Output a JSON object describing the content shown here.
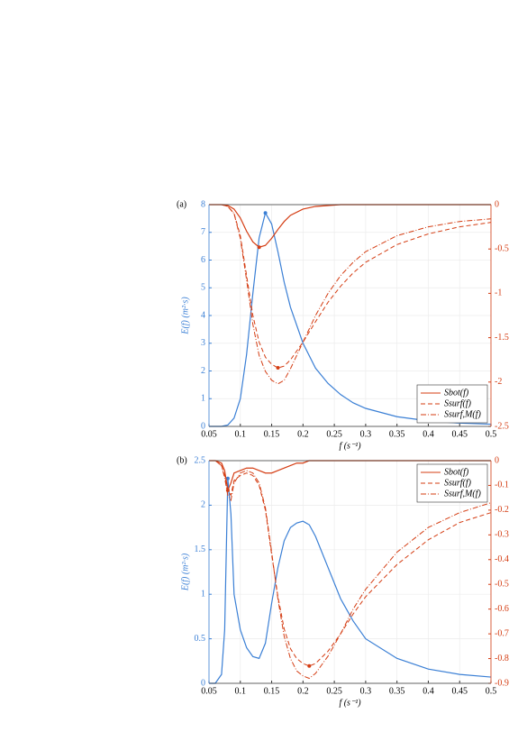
{
  "chart_data": [
    {
      "type": "line",
      "label": "(a)",
      "xlabel": "f (s⁻¹)",
      "ylabel": "E(f) (m²·s)",
      "x": [
        0.05,
        0.07,
        0.08,
        0.09,
        0.1,
        0.11,
        0.12,
        0.13,
        0.14,
        0.15,
        0.16,
        0.17,
        0.18,
        0.2,
        0.22,
        0.24,
        0.26,
        0.28,
        0.3,
        0.35,
        0.4,
        0.45,
        0.5
      ],
      "series": [
        {
          "name": "E(f)",
          "color": "#3a7fd5",
          "style": "solid",
          "axis": "y",
          "values": [
            0,
            0,
            0.05,
            0.3,
            1.0,
            2.6,
            4.8,
            6.8,
            7.7,
            7.3,
            6.3,
            5.2,
            4.3,
            3.0,
            2.1,
            1.55,
            1.15,
            0.85,
            0.65,
            0.35,
            0.2,
            0.12,
            0.08
          ]
        },
        {
          "name": "Sbot(f)",
          "color": "#d43c12",
          "style": "solid",
          "axis": "y2",
          "values": [
            0,
            0,
            -0.01,
            -0.05,
            -0.15,
            -0.3,
            -0.42,
            -0.48,
            -0.46,
            -0.38,
            -0.28,
            -0.19,
            -0.12,
            -0.05,
            -0.02,
            -0.01,
            0,
            0,
            0,
            0,
            0,
            0,
            0
          ]
        },
        {
          "name": "Ssurf(f)",
          "color": "#d43c12",
          "style": "dashed",
          "axis": "y2",
          "values": [
            0,
            0,
            -0.02,
            -0.1,
            -0.35,
            -0.8,
            -1.25,
            -1.55,
            -1.72,
            -1.8,
            -1.84,
            -1.82,
            -1.75,
            -1.55,
            -1.32,
            -1.1,
            -0.92,
            -0.77,
            -0.65,
            -0.45,
            -0.33,
            -0.25,
            -0.2
          ]
        },
        {
          "name": "Ssurf,M(f)",
          "color": "#d43c12",
          "style": "dashdot",
          "axis": "y2",
          "values": [
            0,
            0,
            -0.02,
            -0.1,
            -0.38,
            -0.85,
            -1.35,
            -1.7,
            -1.88,
            -1.98,
            -2.02,
            -1.98,
            -1.85,
            -1.55,
            -1.25,
            -1.0,
            -0.8,
            -0.65,
            -0.53,
            -0.35,
            -0.25,
            -0.19,
            -0.16
          ]
        }
      ],
      "xlim": [
        0.05,
        0.5
      ],
      "xticks": [
        0.05,
        0.1,
        0.15,
        0.2,
        0.25,
        0.3,
        0.35,
        0.4,
        0.45,
        0.5
      ],
      "ylim": [
        0,
        8
      ],
      "yticks": [
        0,
        1,
        2,
        3,
        4,
        5,
        6,
        7,
        8
      ],
      "y2lim": [
        -2.5,
        0
      ],
      "y2ticks": [
        -2.5,
        -2,
        -1.5,
        -1,
        -0.5,
        0
      ],
      "grid": true,
      "legend": "lower right"
    },
    {
      "type": "line",
      "label": "(b)",
      "xlabel": "f (s⁻¹)",
      "ylabel": "E(f) (m²·s)",
      "x": [
        0.05,
        0.06,
        0.07,
        0.075,
        0.08,
        0.085,
        0.09,
        0.1,
        0.11,
        0.12,
        0.13,
        0.14,
        0.15,
        0.16,
        0.17,
        0.18,
        0.19,
        0.2,
        0.21,
        0.22,
        0.24,
        0.26,
        0.28,
        0.3,
        0.35,
        0.4,
        0.45,
        0.5
      ],
      "series": [
        {
          "name": "E(f)",
          "color": "#3a7fd5",
          "style": "solid",
          "axis": "y",
          "values": [
            0,
            0,
            0.1,
            0.6,
            2.3,
            1.9,
            1.0,
            0.6,
            0.4,
            0.3,
            0.28,
            0.45,
            0.9,
            1.3,
            1.6,
            1.75,
            1.8,
            1.82,
            1.78,
            1.65,
            1.3,
            0.95,
            0.7,
            0.5,
            0.28,
            0.16,
            0.1,
            0.07
          ]
        },
        {
          "name": "Sbot(f)",
          "color": "#d43c12",
          "style": "solid",
          "axis": "y2",
          "values": [
            0,
            0,
            -0.01,
            -0.04,
            -0.12,
            -0.09,
            -0.05,
            -0.04,
            -0.03,
            -0.03,
            -0.04,
            -0.05,
            -0.05,
            -0.04,
            -0.03,
            -0.02,
            -0.01,
            -0.01,
            0,
            0,
            0,
            0,
            0,
            0,
            0,
            0,
            0,
            0
          ]
        },
        {
          "name": "Ssurf(f)",
          "color": "#d43c12",
          "style": "dashed",
          "axis": "y2",
          "values": [
            0,
            0,
            -0.02,
            -0.06,
            -0.12,
            -0.14,
            -0.08,
            -0.06,
            -0.05,
            -0.06,
            -0.1,
            -0.2,
            -0.38,
            -0.55,
            -0.68,
            -0.76,
            -0.8,
            -0.82,
            -0.83,
            -0.82,
            -0.77,
            -0.7,
            -0.62,
            -0.55,
            -0.42,
            -0.32,
            -0.25,
            -0.21
          ]
        },
        {
          "name": "Ssurf,M(f)",
          "color": "#d43c12",
          "style": "dashdot",
          "axis": "y2",
          "values": [
            0,
            0,
            -0.02,
            -0.07,
            -0.14,
            -0.16,
            -0.09,
            -0.05,
            -0.04,
            -0.05,
            -0.09,
            -0.19,
            -0.37,
            -0.56,
            -0.71,
            -0.8,
            -0.85,
            -0.87,
            -0.88,
            -0.86,
            -0.79,
            -0.7,
            -0.6,
            -0.52,
            -0.37,
            -0.27,
            -0.21,
            -0.17
          ]
        }
      ],
      "xlim": [
        0.05,
        0.5
      ],
      "xticks": [
        0.05,
        0.1,
        0.15,
        0.2,
        0.25,
        0.3,
        0.35,
        0.4,
        0.45,
        0.5
      ],
      "ylim": [
        0,
        2.5
      ],
      "yticks": [
        0,
        0.5,
        1,
        1.5,
        2,
        2.5
      ],
      "y2lim": [
        -0.9,
        0
      ],
      "y2ticks": [
        -0.9,
        -0.8,
        -0.7,
        -0.6,
        -0.5,
        -0.4,
        -0.3,
        -0.2,
        -0.1,
        0
      ],
      "grid": true,
      "legend": "upper right"
    }
  ]
}
